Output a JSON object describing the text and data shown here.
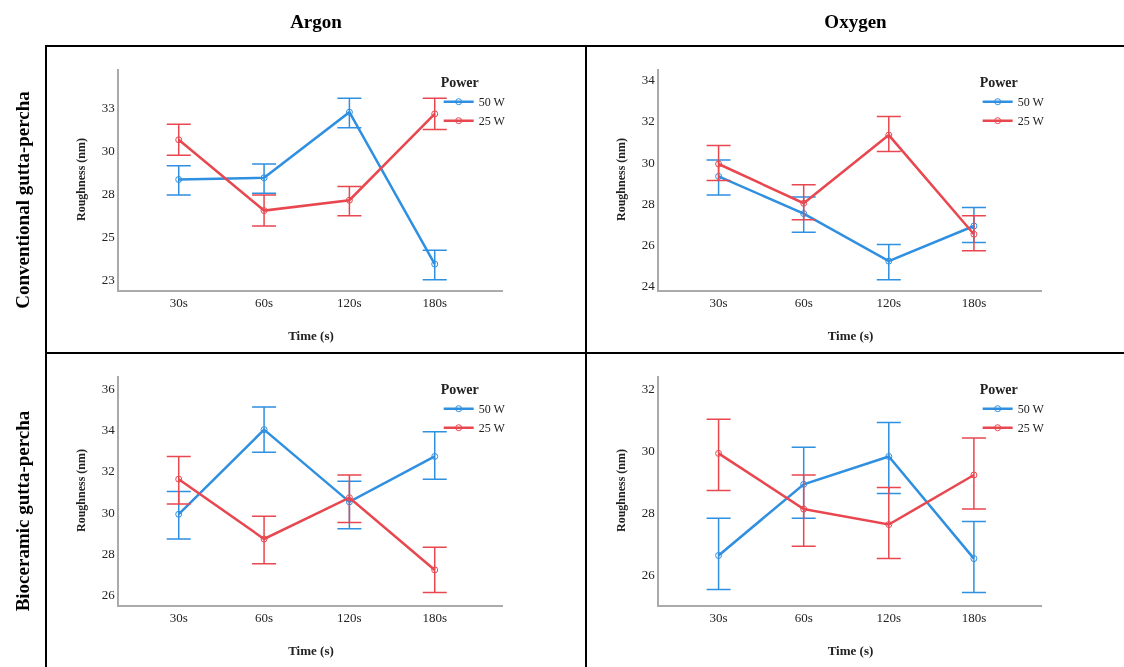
{
  "chart_data": [
    {
      "type": "line",
      "title": "Argon",
      "annotations": [
        "Conventional gutta-percha"
      ],
      "xlabel": "Time (s)",
      "ylabel": "Roughness (nm)",
      "legend_title": "Power",
      "legend": "top right",
      "grid": false,
      "marker": "circle",
      "line_style": "solid",
      "categories": [
        "30s",
        "60s",
        "120s",
        "180s"
      ],
      "ylim": [
        21.9,
        34.7
      ],
      "yticks": [
        {
          "value": 22.5,
          "label": "23"
        },
        {
          "value": 25,
          "label": "25"
        },
        {
          "value": 27.5,
          "label": "28"
        },
        {
          "value": 30,
          "label": "30"
        },
        {
          "value": 32.5,
          "label": "33"
        }
      ],
      "series": [
        {
          "name": "50 W",
          "color": "#2f8fe0",
          "values": [
            28.3,
            28.4,
            32.2,
            23.4
          ],
          "errors": [
            [
              27.4,
              29.1
            ],
            [
              27.5,
              29.2
            ],
            [
              31.3,
              33.0
            ],
            [
              22.5,
              24.2
            ]
          ]
        },
        {
          "name": "25 W",
          "color": "#e8474f",
          "values": [
            30.6,
            26.5,
            27.1,
            32.1
          ],
          "errors": [
            [
              29.7,
              31.5
            ],
            [
              25.6,
              27.4
            ],
            [
              26.2,
              27.9
            ],
            [
              31.2,
              33.0
            ]
          ]
        }
      ]
    },
    {
      "type": "line",
      "title": "Oxygen",
      "xlabel": "Time (s)",
      "ylabel": "Roughness (nm)",
      "legend_title": "Power",
      "legend": "top right",
      "grid": false,
      "marker": "circle",
      "line_style": "solid",
      "categories": [
        "30s",
        "60s",
        "120s",
        "180s"
      ],
      "ylim": [
        23.8,
        34.5
      ],
      "yticks": [
        24,
        26,
        28,
        30,
        32,
        34
      ],
      "series": [
        {
          "name": "50 W",
          "color": "#2f8fe0",
          "values": [
            29.3,
            27.5,
            25.2,
            26.9
          ],
          "errors": [
            [
              28.4,
              30.1
            ],
            [
              26.6,
              28.3
            ],
            [
              24.3,
              26.0
            ],
            [
              26.1,
              27.8
            ]
          ]
        },
        {
          "name": "25 W",
          "color": "#e8474f",
          "values": [
            29.9,
            28.0,
            31.3,
            26.5
          ],
          "errors": [
            [
              29.1,
              30.8
            ],
            [
              27.2,
              28.9
            ],
            [
              30.5,
              32.2
            ],
            [
              25.7,
              27.4
            ]
          ]
        }
      ]
    },
    {
      "type": "line",
      "annotations": [
        "Bioceramic gutta-percha"
      ],
      "xlabel": "Time (s)",
      "ylabel": "Roughness (nm)",
      "legend_title": "Power",
      "legend": "top right",
      "grid": false,
      "marker": "circle",
      "line_style": "solid",
      "categories": [
        "30s",
        "60s",
        "120s",
        "180s"
      ],
      "ylim": [
        25.5,
        36.6
      ],
      "yticks": [
        26,
        28,
        30,
        32,
        34,
        36
      ],
      "series": [
        {
          "name": "50 W",
          "color": "#2f8fe0",
          "values": [
            29.9,
            34.0,
            30.5,
            32.7
          ],
          "errors": [
            [
              28.7,
              31.0
            ],
            [
              32.9,
              35.1
            ],
            [
              29.2,
              31.5
            ],
            [
              31.6,
              33.9
            ]
          ]
        },
        {
          "name": "25 W",
          "color": "#e8474f",
          "values": [
            31.6,
            28.7,
            30.7,
            27.2
          ],
          "errors": [
            [
              30.4,
              32.7
            ],
            [
              27.5,
              29.8
            ],
            [
              29.5,
              31.8
            ],
            [
              26.1,
              28.3
            ]
          ]
        }
      ]
    },
    {
      "type": "line",
      "xlabel": "Time (s)",
      "ylabel": "Roughness (nm)",
      "legend_title": "Power",
      "legend": "top right",
      "grid": false,
      "marker": "circle",
      "line_style": "solid",
      "categories": [
        "30s",
        "60s",
        "120s",
        "180s"
      ],
      "ylim": [
        25.0,
        32.4
      ],
      "yticks": [
        26,
        28,
        30,
        32
      ],
      "series": [
        {
          "name": "50 W",
          "color": "#2f8fe0",
          "values": [
            26.6,
            28.9,
            29.8,
            26.5
          ],
          "errors": [
            [
              25.5,
              27.8
            ],
            [
              27.8,
              30.1
            ],
            [
              28.6,
              30.9
            ],
            [
              25.4,
              27.7
            ]
          ]
        },
        {
          "name": "25 W",
          "color": "#e8474f",
          "values": [
            29.9,
            28.1,
            27.6,
            29.2
          ],
          "errors": [
            [
              28.7,
              31.0
            ],
            [
              26.9,
              29.2
            ],
            [
              26.5,
              28.8
            ],
            [
              28.1,
              30.4
            ]
          ]
        }
      ]
    }
  ]
}
